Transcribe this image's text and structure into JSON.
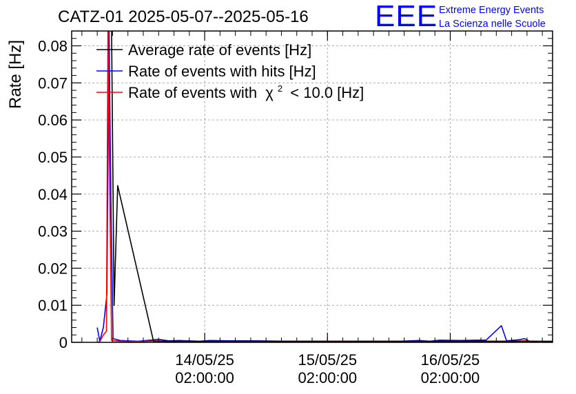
{
  "chart_data": {
    "type": "line",
    "title": "CATZ-01 2025-05-07--2025-05-16",
    "ylabel": "Rate [Hz]",
    "xlabel": "",
    "ylim": [
      0,
      0.084
    ],
    "grid": true,
    "legend_position": "top-left",
    "y_ticks": [
      {
        "value": 0,
        "label": "0"
      },
      {
        "value": 0.01,
        "label": "0.01"
      },
      {
        "value": 0.02,
        "label": "0.02"
      },
      {
        "value": 0.03,
        "label": "0.03"
      },
      {
        "value": 0.04,
        "label": "0.04"
      },
      {
        "value": 0.05,
        "label": "0.05"
      },
      {
        "value": 0.06,
        "label": "0.06"
      },
      {
        "value": 0.07,
        "label": "0.07"
      },
      {
        "value": 0.08,
        "label": "0.08"
      }
    ],
    "x_unit": "hours since 13/05/25 00:00",
    "xlim": [
      0,
      94
    ],
    "x_ticks": [
      {
        "value": 26,
        "date": "14/05/25",
        "time": "02:00:00"
      },
      {
        "value": 50,
        "date": "15/05/25",
        "time": "02:00:00"
      },
      {
        "value": 74,
        "date": "16/05/25",
        "time": "02:00:00"
      }
    ],
    "series": [
      {
        "name": "Average rate of events [Hz]",
        "legend_label": "Average rate of events [Hz]",
        "color": "#000000",
        "points": [
          [
            7.8,
            0.085
          ],
          [
            8.3,
            0.01
          ],
          [
            9.0,
            0.0423
          ],
          [
            16.0,
            0.0003
          ],
          [
            94,
            0.0003
          ]
        ]
      },
      {
        "name": "Rate of events with hits [Hz]",
        "legend_label": "Rate of events with hits [Hz]",
        "color": "#0000ff",
        "points": [
          [
            5.0,
            0.004
          ],
          [
            5.5,
            0.0003
          ],
          [
            6.2,
            0.004
          ],
          [
            6.9,
            0.013
          ],
          [
            7.3,
            0.085
          ],
          [
            7.7,
            0.035
          ],
          [
            8.1,
            0.001
          ],
          [
            9.5,
            0.0005
          ],
          [
            13.0,
            0.0003
          ],
          [
            17.0,
            0.0008
          ],
          [
            19.0,
            0.0004
          ],
          [
            21.0,
            0.0005
          ],
          [
            25.0,
            0.0003
          ],
          [
            27.0,
            0.0005
          ],
          [
            31.0,
            0.0004
          ],
          [
            36.0,
            0.0004
          ],
          [
            42.0,
            0.0003
          ],
          [
            50.0,
            0.0003
          ],
          [
            58.0,
            0.0003
          ],
          [
            64.0,
            0.0003
          ],
          [
            68.0,
            0.0005
          ],
          [
            70.0,
            0.0003
          ],
          [
            72.0,
            0.0006
          ],
          [
            76.0,
            0.0005
          ],
          [
            79.0,
            0.0006
          ],
          [
            81.0,
            0.0006
          ],
          [
            84.0,
            0.0045
          ],
          [
            85.0,
            0.0004
          ],
          [
            87.5,
            0.0007
          ],
          [
            88.5,
            0.001
          ],
          [
            89.5,
            0.0003
          ],
          [
            91.0,
            0.0003
          ]
        ]
      },
      {
        "name": "Rate of events with chi2 < 10.0 [Hz]",
        "legend_label": "Rate of events with",
        "legend_symbol": "χ",
        "legend_exponent": "2",
        "legend_suffix": "< 10.0 [Hz]",
        "color": "#ff0000",
        "points": [
          [
            5.0,
            0.0
          ],
          [
            5.5,
            0.0002
          ],
          [
            6.2,
            0.002
          ],
          [
            6.8,
            0.003
          ],
          [
            7.1,
            0.085
          ],
          [
            7.4,
            0.048
          ],
          [
            7.8,
            0.0005
          ],
          [
            9.5,
            0.0003
          ],
          [
            13.0,
            0.0002
          ],
          [
            17.0,
            0.0004
          ],
          [
            19.0,
            0.0002
          ],
          [
            21.0,
            0.0003
          ],
          [
            25.0,
            0.0002
          ],
          [
            31.0,
            0.0002
          ],
          [
            42.0,
            0.0002
          ],
          [
            58.0,
            0.0002
          ],
          [
            64.0,
            0.0002
          ],
          [
            70.0,
            0.0002
          ],
          [
            76.0,
            0.0003
          ],
          [
            81.0,
            0.0003
          ],
          [
            84.0,
            0.0003
          ],
          [
            86.5,
            0.0003
          ],
          [
            88.5,
            0.0004
          ],
          [
            91.0,
            0.0002
          ]
        ]
      }
    ]
  },
  "logo": {
    "text": "EEE",
    "line1": "Extreme Energy Events",
    "line2": "La Scienza nelle Scuole",
    "color": "#0000ff"
  }
}
